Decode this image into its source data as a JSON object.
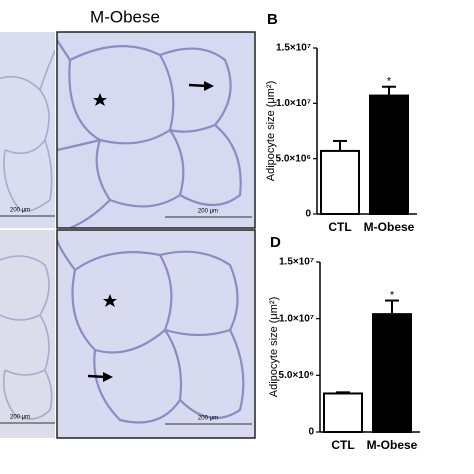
{
  "heading": "M-Obese",
  "scale_bars": [
    "200 μm",
    "200 μm",
    "200 μm",
    "200 μm"
  ],
  "chart_data": [
    {
      "type": "bar",
      "panel": "B",
      "ylabel": "Adipocyte size (μm²)",
      "categories": [
        "CTL",
        "M-Obese"
      ],
      "values": [
        5700000,
        10700000
      ],
      "errors": [
        900000,
        800000
      ],
      "colors": [
        "#ffffff",
        "#000000"
      ],
      "significance": [
        null,
        "*"
      ],
      "ylim": [
        0,
        15000000
      ],
      "yticks": [
        0,
        {
          "value": 5000000,
          "label": "5.0×10⁶"
        },
        {
          "value": 10000000,
          "label": "1.0×10⁷"
        },
        {
          "value": 15000000,
          "label": "1.5×10⁷"
        }
      ]
    },
    {
      "type": "bar",
      "panel": "D",
      "ylabel": "Adipocyte size (μm²)",
      "categories": [
        "CTL",
        "M-Obese"
      ],
      "values": [
        3400000,
        10400000
      ],
      "errors": [
        100000,
        1200000
      ],
      "colors": [
        "#ffffff",
        "#000000"
      ],
      "significance": [
        null,
        "*"
      ],
      "ylim": [
        0,
        15000000
      ],
      "yticks": [
        0,
        {
          "value": 5000000,
          "label": "5.0×10⁶"
        },
        {
          "value": 10000000,
          "label": "1.0×10⁷"
        },
        {
          "value": 15000000,
          "label": "1.5×10⁷"
        }
      ]
    }
  ]
}
